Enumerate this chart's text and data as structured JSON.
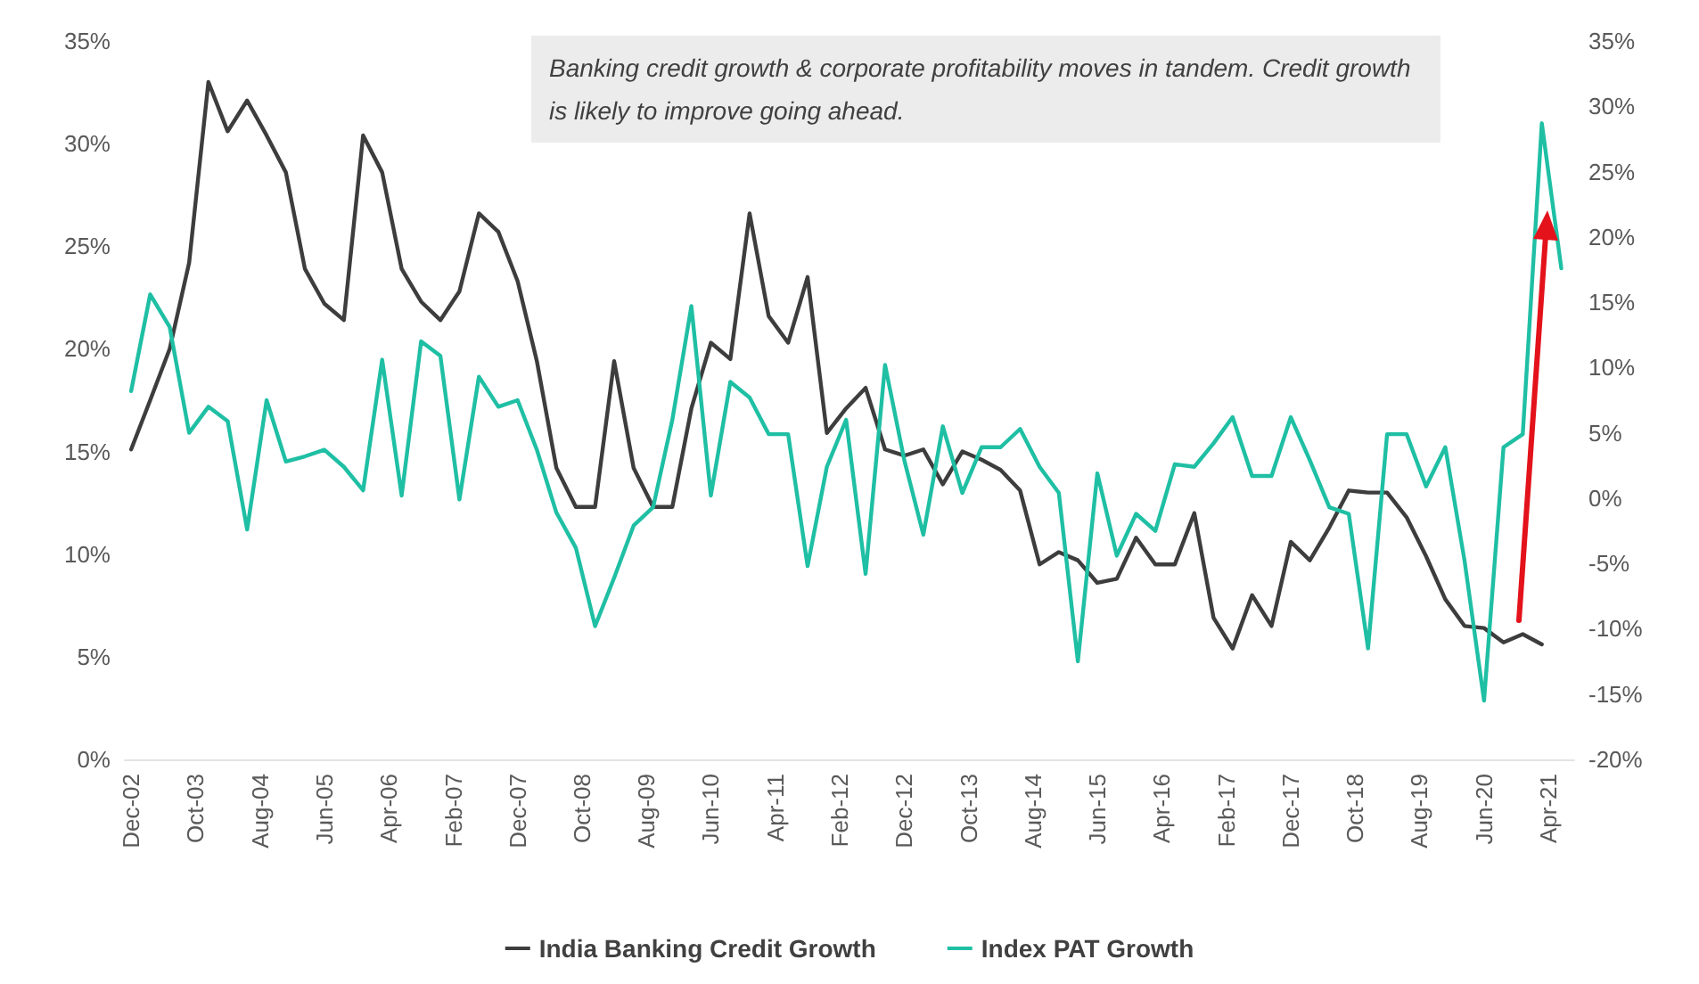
{
  "chart_data": {
    "type": "line",
    "annotations": [
      "Banking credit growth & corporate profitability moves in tandem. Credit growth is likely to improve going ahead."
    ],
    "x": [
      "2002-12",
      "2003-03",
      "2003-06",
      "2003-09",
      "2003-12",
      "2004-03",
      "2004-06",
      "2004-09",
      "2004-12",
      "2005-03",
      "2005-06",
      "2005-09",
      "2005-12",
      "2006-03",
      "2006-06",
      "2006-09",
      "2006-12",
      "2007-03",
      "2007-06",
      "2007-09",
      "2007-12",
      "2008-03",
      "2008-06",
      "2008-09",
      "2008-12",
      "2009-03",
      "2009-06",
      "2009-09",
      "2009-12",
      "2010-03",
      "2010-06",
      "2010-09",
      "2010-12",
      "2011-03",
      "2011-06",
      "2011-09",
      "2011-12",
      "2012-03",
      "2012-06",
      "2012-09",
      "2012-12",
      "2013-03",
      "2013-06",
      "2013-09",
      "2013-12",
      "2014-03",
      "2014-06",
      "2014-09",
      "2014-12",
      "2015-03",
      "2015-06",
      "2015-09",
      "2015-12",
      "2016-03",
      "2016-06",
      "2016-09",
      "2016-12",
      "2017-03",
      "2017-06",
      "2017-09",
      "2017-12",
      "2018-03",
      "2018-06",
      "2018-09",
      "2018-12",
      "2019-03",
      "2019-06",
      "2019-09",
      "2019-12",
      "2020-03",
      "2020-06",
      "2020-09",
      "2020-12",
      "2021-03",
      "2021-06"
    ],
    "series": [
      {
        "name": "India Banking Credit Growth",
        "color": "#3d3d3d",
        "values": [
          15.1,
          17.5,
          20,
          24.2,
          33,
          30.6,
          32.1,
          30.4,
          28.6,
          23.9,
          22.2,
          21.4,
          30.4,
          28.6,
          23.9,
          22.3,
          21.4,
          22.8,
          26.6,
          25.7,
          23.3,
          19.4,
          14.2,
          12.3,
          12.3,
          19.4,
          14.2,
          12.3,
          12.3,
          17.1,
          20.3,
          19.5,
          26.6,
          21.6,
          20.3,
          23.5,
          15.9,
          17.1,
          18.1,
          15.1,
          14.8,
          15.1,
          13.4,
          15.0,
          14.6,
          14.1,
          13.1,
          9.5,
          10.1,
          9.7,
          8.6,
          8.8,
          10.8,
          9.5,
          9.5,
          12.0,
          6.9,
          5.4,
          8.0,
          6.5,
          10.6,
          9.7,
          11.3,
          13.1,
          13.0,
          13.0,
          11.8,
          9.9,
          7.8,
          6.5,
          6.4,
          5.7,
          6.1,
          5.6,
          null
        ]
      },
      {
        "name": "Index PAT Growth",
        "color": "#1fbfa4",
        "axis": "y2",
        "values": [
          8.2,
          15.6,
          13.1,
          5.0,
          7.0,
          5.9,
          -2.4,
          7.5,
          2.8,
          3.2,
          3.7,
          2.4,
          0.6,
          10.6,
          0.2,
          12.0,
          10.9,
          -0.1,
          9.3,
          7.0,
          7.5,
          3.7,
          -1.1,
          -3.8,
          -9.8,
          -6.1,
          -2.1,
          -0.7,
          6.0,
          14.7,
          0.2,
          8.9,
          7.7,
          4.9,
          4.9,
          -5.2,
          2.4,
          6.0,
          -5.8,
          10.2,
          2.9,
          -2.8,
          5.5,
          0.4,
          3.9,
          3.9,
          5.3,
          2.4,
          0.4,
          -12.5,
          1.9,
          -4.4,
          -1.2,
          -2.5,
          2.6,
          2.4,
          4.2,
          6.2,
          1.7,
          1.7,
          6.2,
          2.9,
          -0.7,
          -1.2,
          -11.5,
          4.9,
          4.9,
          0.9,
          3.9,
          -4.8,
          -15.5,
          3.9,
          4.9,
          28.7,
          17.6
        ]
      }
    ],
    "xlim": [
      "2002-11",
      "2021-08"
    ],
    "xticks": [
      {
        "value": "2002-12",
        "label": "Dec-02"
      },
      {
        "value": "2003-10",
        "label": "Oct-03"
      },
      {
        "value": "2004-08",
        "label": "Aug-04"
      },
      {
        "value": "2005-06",
        "label": "Jun-05"
      },
      {
        "value": "2006-04",
        "label": "Apr-06"
      },
      {
        "value": "2007-02",
        "label": "Feb-07"
      },
      {
        "value": "2007-12",
        "label": "Dec-07"
      },
      {
        "value": "2008-10",
        "label": "Oct-08"
      },
      {
        "value": "2009-08",
        "label": "Aug-09"
      },
      {
        "value": "2010-06",
        "label": "Jun-10"
      },
      {
        "value": "2011-04",
        "label": "Apr-11"
      },
      {
        "value": "2012-02",
        "label": "Feb-12"
      },
      {
        "value": "2012-12",
        "label": "Dec-12"
      },
      {
        "value": "2013-10",
        "label": "Oct-13"
      },
      {
        "value": "2014-08",
        "label": "Aug-14"
      },
      {
        "value": "2015-06",
        "label": "Jun-15"
      },
      {
        "value": "2016-04",
        "label": "Apr-16"
      },
      {
        "value": "2017-02",
        "label": "Feb-17"
      },
      {
        "value": "2017-12",
        "label": "Dec-17"
      },
      {
        "value": "2018-10",
        "label": "Oct-18"
      },
      {
        "value": "2019-08",
        "label": "Aug-19"
      },
      {
        "value": "2020-06",
        "label": "Jun-20"
      },
      {
        "value": "2021-04",
        "label": "Apr-21"
      }
    ],
    "ylim": [
      0,
      35
    ],
    "yticks": [
      {
        "value": 0,
        "label": "0%"
      },
      {
        "value": 5,
        "label": "5%"
      },
      {
        "value": 10,
        "label": "10%"
      },
      {
        "value": 15,
        "label": "15%"
      },
      {
        "value": 20,
        "label": "20%"
      },
      {
        "value": 25,
        "label": "25%"
      },
      {
        "value": 30,
        "label": "30%"
      },
      {
        "value": 35,
        "label": "35%"
      }
    ],
    "y2lim": [
      -20,
      35
    ],
    "y2ticks": [
      {
        "value": -20,
        "label": "-20%"
      },
      {
        "value": -15,
        "label": "-15%"
      },
      {
        "value": -10,
        "label": "-10%"
      },
      {
        "value": -5,
        "label": "-5%"
      },
      {
        "value": 0,
        "label": "0%"
      },
      {
        "value": 5,
        "label": "5%"
      },
      {
        "value": 10,
        "label": "10%"
      },
      {
        "value": 15,
        "label": "15%"
      },
      {
        "value": 20,
        "label": "20%"
      },
      {
        "value": 25,
        "label": "25%"
      },
      {
        "value": 30,
        "label": "30%"
      },
      {
        "value": 35,
        "label": "35%"
      }
    ],
    "grid": false,
    "legend": "bottom",
    "marker": "none",
    "line_style": "solid"
  }
}
